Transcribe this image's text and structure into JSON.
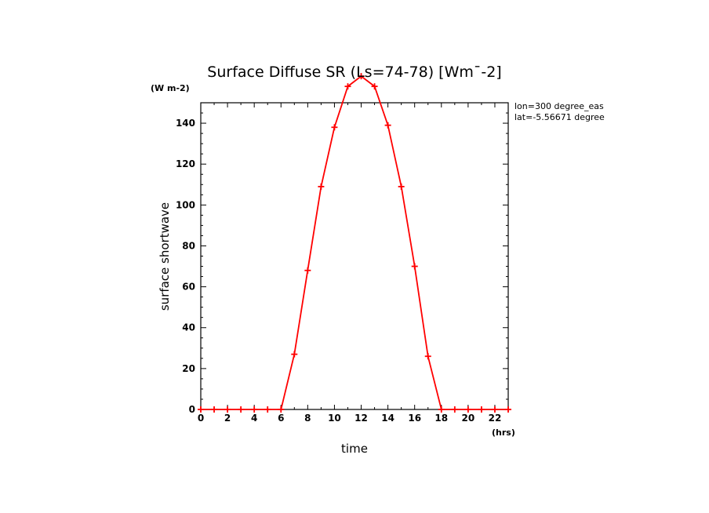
{
  "chart_data": {
    "type": "line",
    "title": "Surface Diffuse SR (Ls=74-78) [Wm¯-2]",
    "xlabel": "time",
    "ylabel": "surface shortwave",
    "x_units": "(hrs)",
    "y_units": "(W m-2)",
    "annotations": [
      "lon=300 degree_eas",
      "lat=-5.56671 degree"
    ],
    "xlim": [
      0,
      23
    ],
    "ylim": [
      0,
      150
    ],
    "xticks": [
      "0",
      "2",
      "4",
      "6",
      "8",
      "10",
      "12",
      "14",
      "16",
      "18",
      "20",
      "22"
    ],
    "yticks": [
      "0",
      "20",
      "40",
      "60",
      "80",
      "100",
      "120",
      "140"
    ],
    "x": [
      0,
      1,
      2,
      3,
      4,
      5,
      6,
      7,
      8,
      9,
      10,
      11,
      12,
      13,
      14,
      15,
      16,
      17,
      18,
      19,
      20,
      21,
      22,
      23
    ],
    "series": [
      {
        "values": [
          0,
          0,
          0,
          0,
          0,
          0,
          0,
          27,
          68,
          109,
          138,
          158,
          163,
          158,
          139,
          109,
          70,
          26,
          0,
          0,
          0,
          0,
          0,
          0
        ],
        "color": "#ff0000",
        "marker": "plus"
      }
    ],
    "grid": false,
    "legend": "none"
  }
}
